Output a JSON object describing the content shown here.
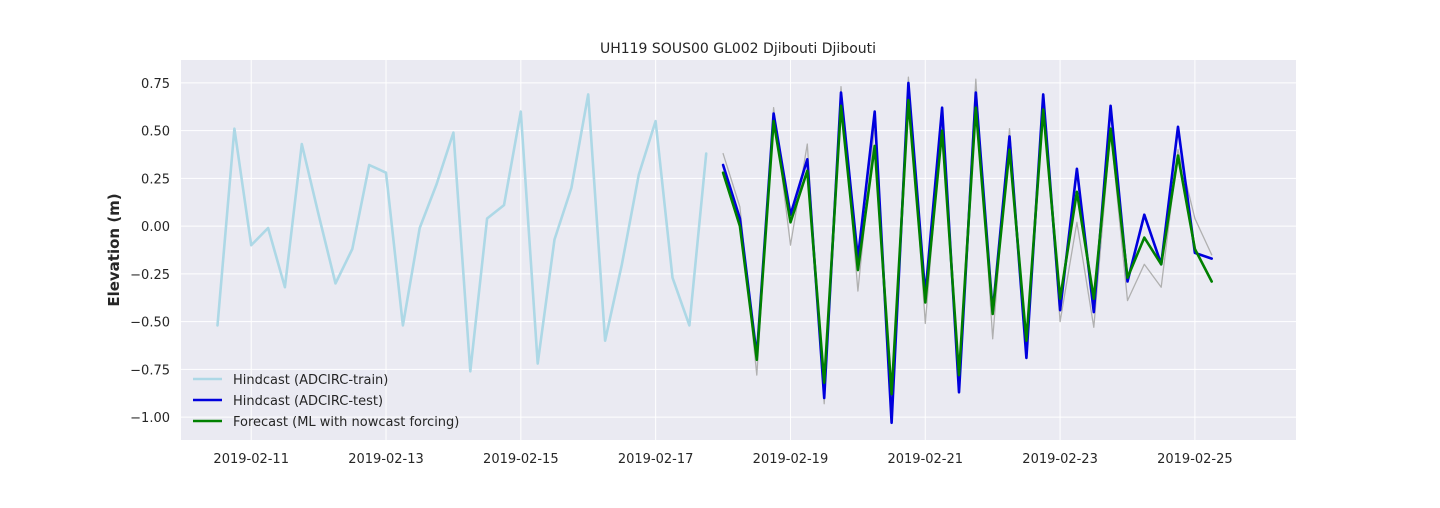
{
  "chart_data": {
    "type": "line",
    "title": "UH119 SOUS00 GL002 Djibouti Djibouti",
    "xlabel": "",
    "ylabel": "Elevation (m)",
    "x_axis": "date",
    "xlim": [
      "2019-02-09T23:00",
      "2019-02-26T12:00"
    ],
    "ylim": [
      -1.12,
      0.87
    ],
    "xticks": [
      "2019-02-11",
      "2019-02-13",
      "2019-02-15",
      "2019-02-17",
      "2019-02-19",
      "2019-02-21",
      "2019-02-23",
      "2019-02-25"
    ],
    "yticks": [
      0.75,
      0.5,
      0.25,
      0.0,
      -0.25,
      -0.5,
      -0.75,
      -1.0
    ],
    "ytick_labels": [
      "0.75",
      "0.50",
      "0.25",
      "0.00",
      "−0.25",
      "−0.50",
      "−0.75",
      "−1.00"
    ],
    "grid": true,
    "legend_position": "lower-left",
    "background": "#eaeaf2",
    "series": [
      {
        "name": "",
        "role": "unlabeled-reference",
        "color": "#b0b0b0",
        "x": [
          "2019-02-18T00:00",
          "2019-02-18T06:00",
          "2019-02-18T12:00",
          "2019-02-18T18:00",
          "2019-02-19T00:00",
          "2019-02-19T06:00",
          "2019-02-19T12:00",
          "2019-02-19T18:00",
          "2019-02-20T00:00",
          "2019-02-20T06:00",
          "2019-02-20T12:00",
          "2019-02-20T18:00",
          "2019-02-21T00:00",
          "2019-02-21T06:00",
          "2019-02-21T12:00",
          "2019-02-21T18:00",
          "2019-02-22T00:00",
          "2019-02-22T06:00",
          "2019-02-22T12:00",
          "2019-02-22T18:00",
          "2019-02-23T00:00",
          "2019-02-23T06:00",
          "2019-02-23T12:00",
          "2019-02-23T18:00",
          "2019-02-24T00:00",
          "2019-02-24T06:00",
          "2019-02-24T12:00",
          "2019-02-24T18:00",
          "2019-02-25T00:00",
          "2019-02-25T06:00"
        ],
        "values": [
          0.38,
          0.1,
          -0.78,
          0.62,
          -0.1,
          0.43,
          -0.93,
          0.73,
          -0.34,
          0.53,
          -0.95,
          0.78,
          -0.51,
          0.57,
          -0.84,
          0.77,
          -0.59,
          0.51,
          -0.66,
          0.68,
          -0.5,
          0.02,
          -0.53,
          0.5,
          -0.39,
          -0.2,
          -0.32,
          0.4,
          0.04,
          -0.15
        ]
      },
      {
        "name": "Hindcast (ADCIRC-train)",
        "color": "#add8e6",
        "x": [
          "2019-02-10T12:00",
          "2019-02-10T18:00",
          "2019-02-11T00:00",
          "2019-02-11T06:00",
          "2019-02-11T12:00",
          "2019-02-11T18:00",
          "2019-02-12T00:00",
          "2019-02-12T06:00",
          "2019-02-12T12:00",
          "2019-02-12T18:00",
          "2019-02-13T00:00",
          "2019-02-13T06:00",
          "2019-02-13T12:00",
          "2019-02-13T18:00",
          "2019-02-14T00:00",
          "2019-02-14T06:00",
          "2019-02-14T12:00",
          "2019-02-14T18:00",
          "2019-02-15T00:00",
          "2019-02-15T06:00",
          "2019-02-15T12:00",
          "2019-02-15T18:00",
          "2019-02-16T00:00",
          "2019-02-16T06:00",
          "2019-02-16T12:00",
          "2019-02-16T18:00",
          "2019-02-17T00:00",
          "2019-02-17T06:00",
          "2019-02-17T12:00",
          "2019-02-17T18:00"
        ],
        "values": [
          -0.52,
          0.51,
          -0.1,
          -0.01,
          -0.32,
          0.43,
          0.06,
          -0.3,
          -0.12,
          0.32,
          0.28,
          -0.52,
          -0.01,
          0.22,
          0.49,
          -0.76,
          0.04,
          0.11,
          0.6,
          -0.72,
          -0.07,
          0.2,
          0.69,
          -0.6,
          -0.2,
          0.27,
          0.55,
          -0.27,
          -0.52,
          0.38
        ]
      },
      {
        "name": "Hindcast (ADCIRC-test)",
        "color": "#0000dd",
        "x": [
          "2019-02-18T00:00",
          "2019-02-18T06:00",
          "2019-02-18T12:00",
          "2019-02-18T18:00",
          "2019-02-19T00:00",
          "2019-02-19T06:00",
          "2019-02-19T12:00",
          "2019-02-19T18:00",
          "2019-02-20T00:00",
          "2019-02-20T06:00",
          "2019-02-20T12:00",
          "2019-02-20T18:00",
          "2019-02-21T00:00",
          "2019-02-21T06:00",
          "2019-02-21T12:00",
          "2019-02-21T18:00",
          "2019-02-22T00:00",
          "2019-02-22T06:00",
          "2019-02-22T12:00",
          "2019-02-22T18:00",
          "2019-02-23T00:00",
          "2019-02-23T06:00",
          "2019-02-23T12:00",
          "2019-02-23T18:00",
          "2019-02-24T00:00",
          "2019-02-24T06:00",
          "2019-02-24T12:00",
          "2019-02-24T18:00",
          "2019-02-25T00:00",
          "2019-02-25T06:00"
        ],
        "values": [
          0.32,
          0.04,
          -0.68,
          0.59,
          0.06,
          0.35,
          -0.9,
          0.7,
          -0.17,
          0.6,
          -1.03,
          0.75,
          -0.36,
          0.62,
          -0.87,
          0.7,
          -0.45,
          0.47,
          -0.69,
          0.69,
          -0.44,
          0.3,
          -0.45,
          0.63,
          -0.29,
          0.06,
          -0.2,
          0.52,
          -0.14,
          -0.17
        ]
      },
      {
        "name": "Forecast (ML with nowcast forcing)",
        "color": "#008000",
        "x": [
          "2019-02-18T00:00",
          "2019-02-18T06:00",
          "2019-02-18T12:00",
          "2019-02-18T18:00",
          "2019-02-19T00:00",
          "2019-02-19T06:00",
          "2019-02-19T12:00",
          "2019-02-19T18:00",
          "2019-02-20T00:00",
          "2019-02-20T06:00",
          "2019-02-20T12:00",
          "2019-02-20T18:00",
          "2019-02-21T00:00",
          "2019-02-21T06:00",
          "2019-02-21T12:00",
          "2019-02-21T18:00",
          "2019-02-22T00:00",
          "2019-02-22T06:00",
          "2019-02-22T12:00",
          "2019-02-22T18:00",
          "2019-02-23T00:00",
          "2019-02-23T06:00",
          "2019-02-23T12:00",
          "2019-02-23T18:00",
          "2019-02-24T00:00",
          "2019-02-24T06:00",
          "2019-02-24T12:00",
          "2019-02-24T18:00",
          "2019-02-25T00:00",
          "2019-02-25T06:00"
        ],
        "values": [
          0.28,
          0.0,
          -0.7,
          0.55,
          0.02,
          0.29,
          -0.82,
          0.63,
          -0.23,
          0.42,
          -0.88,
          0.66,
          -0.4,
          0.5,
          -0.78,
          0.62,
          -0.46,
          0.4,
          -0.6,
          0.61,
          -0.38,
          0.18,
          -0.38,
          0.51,
          -0.27,
          -0.06,
          -0.2,
          0.37,
          -0.12,
          -0.29
        ]
      }
    ]
  }
}
